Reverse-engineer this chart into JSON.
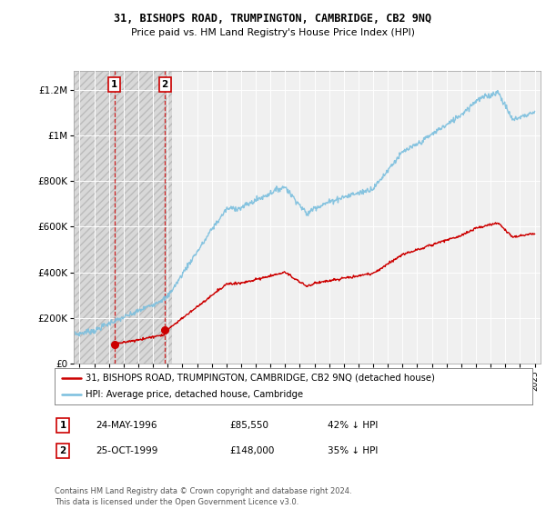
{
  "title": "31, BISHOPS ROAD, TRUMPINGTON, CAMBRIDGE, CB2 9NQ",
  "subtitle": "Price paid vs. HM Land Registry's House Price Index (HPI)",
  "background_color": "#ffffff",
  "plot_bg_color": "#f0f0f0",
  "grid_color": "#ffffff",
  "hpi_color": "#7bbfde",
  "price_color": "#cc0000",
  "hatch_color": "#d8d8d8",
  "purchase1_date": 1996.38,
  "purchase1_price": 85550,
  "purchase2_date": 1999.81,
  "purchase2_price": 148000,
  "legend_line1": "31, BISHOPS ROAD, TRUMPINGTON, CAMBRIDGE, CB2 9NQ (detached house)",
  "legend_line2": "HPI: Average price, detached house, Cambridge",
  "table_row1": [
    "1",
    "24-MAY-1996",
    "£85,550",
    "42% ↓ HPI"
  ],
  "table_row2": [
    "2",
    "25-OCT-1999",
    "£148,000",
    "35% ↓ HPI"
  ],
  "footnote": "Contains HM Land Registry data © Crown copyright and database right 2024.\nThis data is licensed under the Open Government Licence v3.0.",
  "ylim": [
    0,
    1280000
  ],
  "ytick_vals": [
    0,
    200000,
    400000,
    600000,
    800000,
    1000000,
    1200000
  ],
  "ytick_labels": [
    "£0",
    "£200K",
    "£400K",
    "£600K",
    "£800K",
    "£1M",
    "£1.2M"
  ],
  "xlim_start": 1993.6,
  "xlim_end": 2025.4,
  "hatch_end": 2000.3
}
